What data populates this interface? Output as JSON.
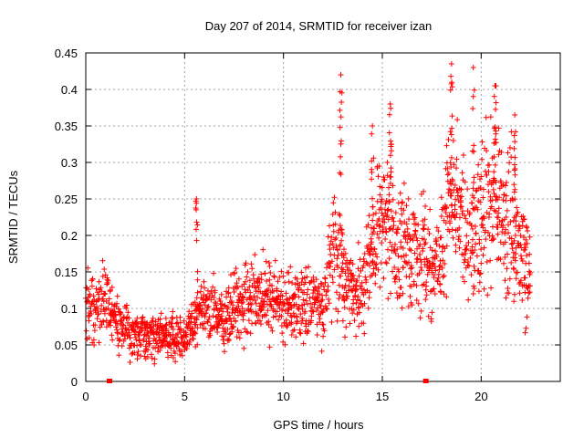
{
  "chart_data": {
    "type": "scatter",
    "title": "Day 207 of 2014, SRMTID for receiver izan",
    "xlabel": "GPS time / hours",
    "ylabel": "SRMTID / TECUs",
    "xlim": [
      0,
      24
    ],
    "ylim": [
      0,
      0.45
    ],
    "x_ticks": [
      0,
      5,
      10,
      15,
      20
    ],
    "x_tick_labels": [
      "0",
      "5",
      "10",
      "15",
      "20"
    ],
    "y_ticks": [
      0,
      0.05,
      0.1,
      0.15,
      0.2,
      0.25,
      0.3,
      0.35,
      0.4,
      0.45
    ],
    "y_tick_labels": [
      "0",
      "0.05",
      "0.1",
      "0.15",
      "0.2",
      "0.25",
      "0.3",
      "0.35",
      "0.4",
      "0.45"
    ],
    "grid": true,
    "marker": "plus",
    "color": "#ff0000",
    "data_gap_markers_x": [
      1.2,
      17.2
    ],
    "trend": {
      "x": [
        0,
        0.5,
        1,
        1.5,
        2,
        3,
        4,
        5,
        5.5,
        6,
        7,
        8,
        9,
        10,
        11,
        12,
        12.5,
        13,
        13.5,
        14,
        14.5,
        15,
        15.5,
        16,
        16.5,
        17,
        17.5,
        18,
        18.5,
        19,
        19.5,
        20,
        20.5,
        21,
        21.5,
        22,
        22.5
      ],
      "y": [
        0.11,
        0.1,
        0.12,
        0.09,
        0.07,
        0.065,
        0.06,
        0.06,
        0.08,
        0.1,
        0.09,
        0.11,
        0.12,
        0.1,
        0.11,
        0.1,
        0.18,
        0.15,
        0.12,
        0.13,
        0.18,
        0.22,
        0.2,
        0.18,
        0.17,
        0.17,
        0.16,
        0.18,
        0.25,
        0.22,
        0.2,
        0.22,
        0.25,
        0.23,
        0.22,
        0.17,
        0.14
      ]
    },
    "spikes": [
      {
        "x": 5.6,
        "y": 0.25
      },
      {
        "x": 12.9,
        "y": 0.42
      },
      {
        "x": 14.5,
        "y": 0.35
      },
      {
        "x": 15.4,
        "y": 0.38
      },
      {
        "x": 18.5,
        "y": 0.435
      },
      {
        "x": 19.6,
        "y": 0.43
      },
      {
        "x": 20.7,
        "y": 0.405
      },
      {
        "x": 21.7,
        "y": 0.365
      }
    ]
  }
}
